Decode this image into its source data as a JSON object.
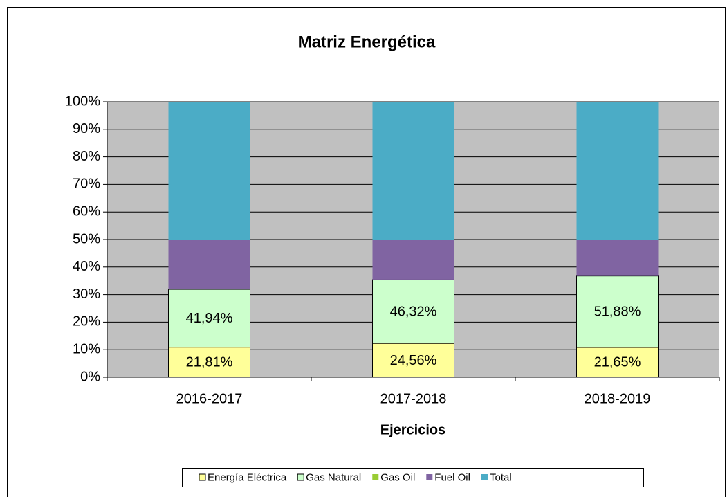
{
  "chart_data": {
    "type": "bar",
    "stacking": "percent",
    "title": "Matriz Energética",
    "x_label": "Ejercicios",
    "categories": [
      "2016-2017",
      "2017-2018",
      "2018-2019"
    ],
    "series": [
      {
        "name": "Energía Eléctrica",
        "color": "#ffff99",
        "outline": true,
        "values": [
          21.81,
          24.56,
          21.65
        ],
        "value_labels": [
          "21,81%",
          "24,56%",
          "21,65%"
        ]
      },
      {
        "name": "Gas Natural",
        "color": "#ccffcc",
        "outline": true,
        "values": [
          41.94,
          46.32,
          51.88
        ],
        "value_labels": [
          "41,94%",
          "46,32%",
          "51,88%"
        ]
      },
      {
        "name": "Gas Oil",
        "color": "#99cc33",
        "outline": false,
        "values": [
          0,
          0,
          0
        ]
      },
      {
        "name": "Fuel Oil",
        "color": "#8064a2",
        "outline": false,
        "values": [
          36.25,
          29.12,
          26.47
        ]
      },
      {
        "name": "Total",
        "color": "#4bacc6",
        "outline": false,
        "values": [
          100,
          100,
          100
        ]
      }
    ],
    "ylim": [
      0,
      100
    ],
    "yticks": [
      {
        "value": 0,
        "label": "0%"
      },
      {
        "value": 10,
        "label": "10%"
      },
      {
        "value": 20,
        "label": "20%"
      },
      {
        "value": 30,
        "label": "30%"
      },
      {
        "value": 40,
        "label": "40%"
      },
      {
        "value": 50,
        "label": "50%"
      },
      {
        "value": 60,
        "label": "60%"
      },
      {
        "value": 70,
        "label": "70%"
      },
      {
        "value": 80,
        "label": "80%"
      },
      {
        "value": 90,
        "label": "90%"
      },
      {
        "value": 100,
        "label": "100%"
      }
    ],
    "grid": true,
    "legend": "bottom",
    "plot_background": "#c0c0c0"
  }
}
